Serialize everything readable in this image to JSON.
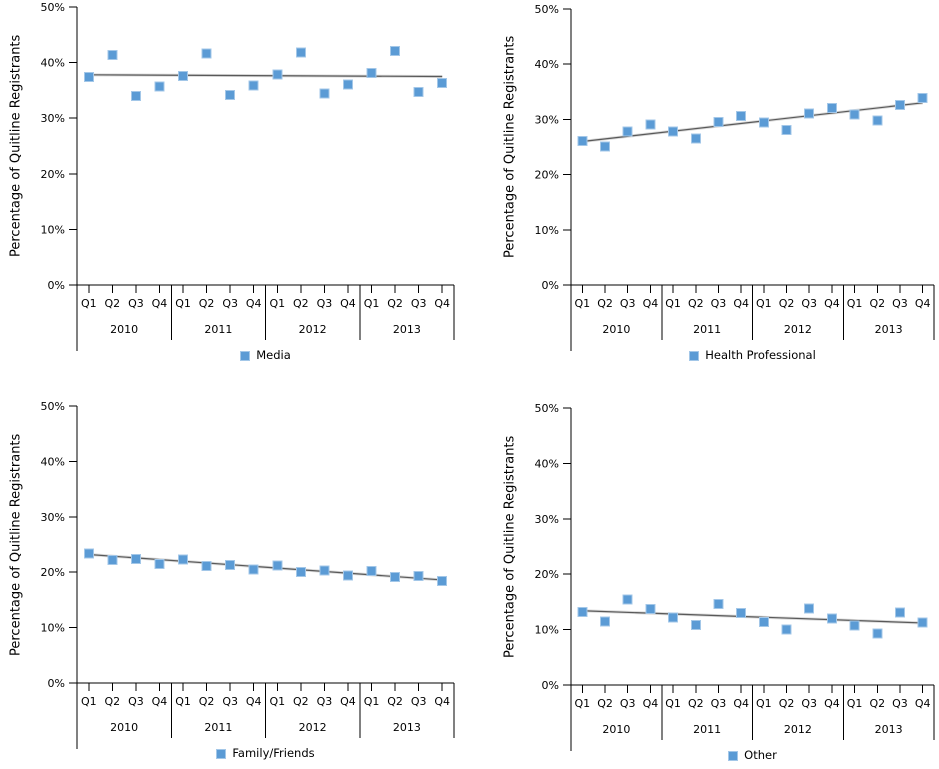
{
  "colors": {
    "marker_fill": "#5B9BD5",
    "marker_border": "#A3C7E8",
    "trend_line": "#595959",
    "trend_halo": "#D9D9D9",
    "axis_line": "#000000",
    "text": "#000000",
    "background": "#FFFFFF"
  },
  "chart_data": [
    {
      "type": "scatter",
      "legend": "Media",
      "ylabel": "Percentage of Quitline Registrants",
      "ylim": [
        0,
        50
      ],
      "y_tick_labels": [
        "0%",
        "10%",
        "20%",
        "30%",
        "40%",
        "50%"
      ],
      "quarters": [
        "Q1",
        "Q2",
        "Q3",
        "Q4"
      ],
      "years": [
        "2010",
        "2011",
        "2012",
        "2013"
      ],
      "categories": [
        "2010 Q1",
        "2010 Q2",
        "2010 Q3",
        "2010 Q4",
        "2011 Q1",
        "2011 Q2",
        "2011 Q3",
        "2011 Q4",
        "2012 Q1",
        "2012 Q2",
        "2012 Q3",
        "2012 Q4",
        "2013 Q1",
        "2013 Q2",
        "2013 Q3",
        "2013 Q4"
      ],
      "values": [
        37.4,
        41.4,
        34.0,
        35.7,
        37.6,
        41.6,
        34.2,
        35.9,
        37.9,
        41.8,
        34.4,
        36.1,
        38.1,
        42.1,
        34.7,
        36.3
      ],
      "trendline": {
        "type": "linear",
        "start": 37.8,
        "end": 37.5
      },
      "grid": false,
      "legend_position": "bottom"
    },
    {
      "type": "scatter",
      "legend": "Health Professional",
      "ylabel": "Percentage of Quitline Registrants",
      "ylim": [
        0,
        50
      ],
      "y_tick_labels": [
        "0%",
        "10%",
        "20%",
        "30%",
        "40%",
        "50%"
      ],
      "quarters": [
        "Q1",
        "Q2",
        "Q3",
        "Q4"
      ],
      "years": [
        "2010",
        "2011",
        "2012",
        "2013"
      ],
      "categories": [
        "2010 Q1",
        "2010 Q2",
        "2010 Q3",
        "2010 Q4",
        "2011 Q1",
        "2011 Q2",
        "2011 Q3",
        "2011 Q4",
        "2012 Q1",
        "2012 Q2",
        "2012 Q3",
        "2012 Q4",
        "2013 Q1",
        "2013 Q2",
        "2013 Q3",
        "2013 Q4"
      ],
      "values": [
        26.1,
        25.1,
        27.8,
        29.1,
        27.8,
        26.5,
        29.5,
        30.6,
        29.4,
        28.1,
        31.1,
        32.1,
        30.9,
        29.8,
        32.6,
        33.9
      ],
      "trendline": {
        "type": "linear",
        "start": 26.0,
        "end": 33.0
      },
      "grid": false,
      "legend_position": "bottom"
    },
    {
      "type": "scatter",
      "legend": "Family/Friends",
      "ylabel": "Percentage of Quitline Registrants",
      "ylim": [
        0,
        50
      ],
      "y_tick_labels": [
        "0%",
        "10%",
        "20%",
        "30%",
        "40%",
        "50%"
      ],
      "quarters": [
        "Q1",
        "Q2",
        "Q3",
        "Q4"
      ],
      "years": [
        "2010",
        "2011",
        "2012",
        "2013"
      ],
      "categories": [
        "2010 Q1",
        "2010 Q2",
        "2010 Q3",
        "2010 Q4",
        "2011 Q1",
        "2011 Q2",
        "2011 Q3",
        "2011 Q4",
        "2012 Q1",
        "2012 Q2",
        "2012 Q3",
        "2012 Q4",
        "2013 Q1",
        "2013 Q2",
        "2013 Q3",
        "2013 Q4"
      ],
      "values": [
        23.4,
        22.2,
        22.4,
        21.5,
        22.3,
        21.1,
        21.3,
        20.5,
        21.2,
        20.0,
        20.3,
        19.4,
        20.2,
        19.1,
        19.3,
        18.4
      ],
      "trendline": {
        "type": "linear",
        "start": 23.2,
        "end": 18.6
      },
      "grid": false,
      "legend_position": "bottom"
    },
    {
      "type": "scatter",
      "legend": "Other",
      "ylabel": "Percentage of Quitline Registrants",
      "ylim": [
        0,
        50
      ],
      "y_tick_labels": [
        "0%",
        "10%",
        "20%",
        "30%",
        "40%",
        "50%"
      ],
      "quarters": [
        "Q1",
        "Q2",
        "Q3",
        "Q4"
      ],
      "years": [
        "2010",
        "2011",
        "2012",
        "2013"
      ],
      "categories": [
        "2010 Q1",
        "2010 Q2",
        "2010 Q3",
        "2010 Q4",
        "2011 Q1",
        "2011 Q2",
        "2011 Q3",
        "2011 Q4",
        "2012 Q1",
        "2012 Q2",
        "2012 Q3",
        "2012 Q4",
        "2013 Q1",
        "2013 Q2",
        "2013 Q3",
        "2013 Q4"
      ],
      "values": [
        13.2,
        11.5,
        15.4,
        13.7,
        12.2,
        10.8,
        14.6,
        13.0,
        11.4,
        10.0,
        13.8,
        12.0,
        10.7,
        9.3,
        13.1,
        11.3
      ],
      "trendline": {
        "type": "linear",
        "start": 13.4,
        "end": 11.2
      },
      "grid": false,
      "legend_position": "bottom"
    }
  ]
}
